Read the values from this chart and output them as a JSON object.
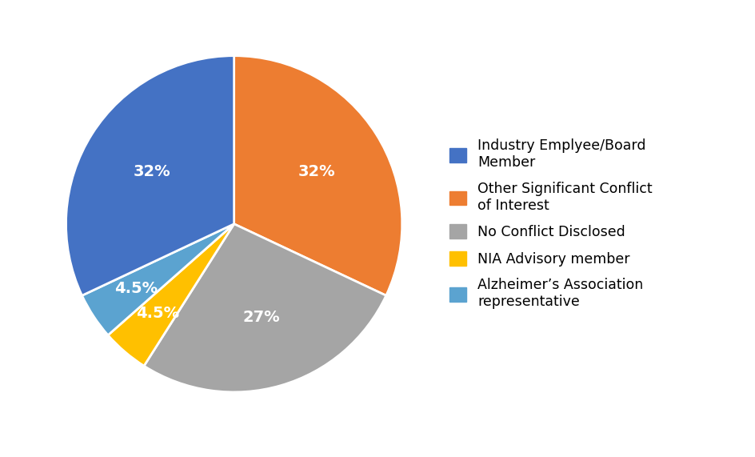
{
  "values": [
    32,
    27,
    4.5,
    4.5,
    32
  ],
  "colors": [
    "#ED7D31",
    "#A5A5A5",
    "#FFC000",
    "#5BA3D0",
    "#4472C4"
  ],
  "pct_labels": [
    "32%",
    "27%",
    "4.5%",
    "4.5%",
    "32%"
  ],
  "legend_labels": [
    "Industry Emplyee/Board\nMember",
    "Other Significant Conflict\nof Interest",
    "No Conflict Disclosed",
    "NIA Advisory member",
    "Alzheimer’s Association\nrepresentative"
  ],
  "legend_colors": [
    "#4472C4",
    "#ED7D31",
    "#A5A5A5",
    "#FFC000",
    "#5BA3D0"
  ],
  "startangle": 90,
  "background_color": "#ffffff",
  "label_fontsize": 14,
  "legend_fontsize": 12.5
}
